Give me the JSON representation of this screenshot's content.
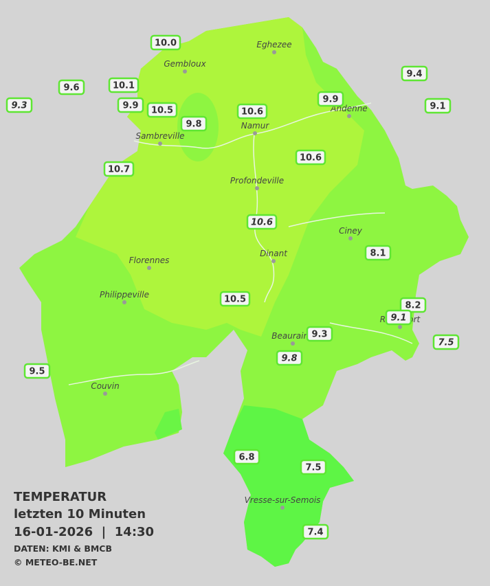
{
  "title": {
    "heading": "TEMPERATUR",
    "period": "letzten 10 Minuten",
    "datetime": "16-01-2026  |  14:30",
    "source": "DATEN: KMI & BMCB",
    "copyright": "© METEO-BE.NET"
  },
  "cities": [
    "Eghezee",
    "Gembloux",
    "Andenne",
    "Namur",
    "Sambreville",
    "Profondeville",
    "Ciney",
    "Dinant",
    "Florennes",
    "Philippeville",
    "Rochefort",
    "Beauraing",
    "Couvin",
    "Vresse-sur-Semois"
  ],
  "stations": [
    "10.0",
    "9.6",
    "10.1",
    "9.3",
    "9.9",
    "10.5",
    "9.8",
    "10.6",
    "9.9",
    "9.4",
    "9.1",
    "10.7",
    "10.6",
    "10.6",
    "8.1",
    "8.2",
    "9.1",
    "7.5",
    "10.5",
    "9.3",
    "9.8",
    "9.5",
    "6.8",
    "7.5",
    "7.4"
  ]
}
